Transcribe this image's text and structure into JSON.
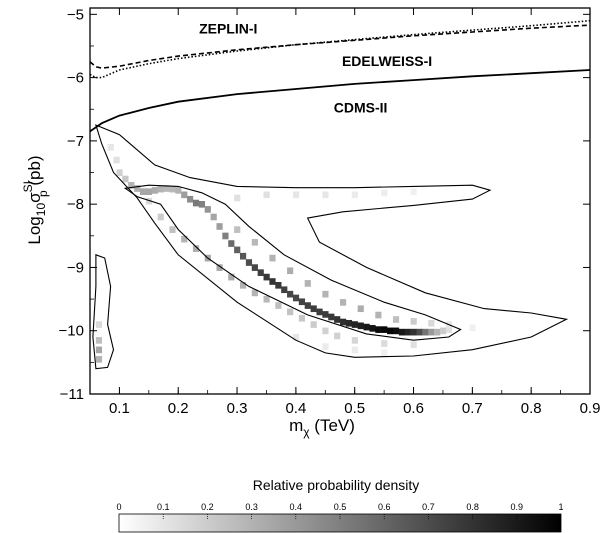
{
  "chart_data": {
    "type": "heatmap",
    "x_range": [
      0.05,
      0.9
    ],
    "y_range": [
      -11,
      -4.9
    ],
    "x_ticks": [
      "0.1",
      "0.2",
      "0.3",
      "0.4",
      "0.5",
      "0.6",
      "0.7",
      "0.8",
      "0.9"
    ],
    "y_ticks": [
      "-11",
      "-10",
      "-9",
      "-8",
      "-7",
      "-6",
      "-5"
    ],
    "xlabel": {
      "main": "m",
      "sub": "χ",
      "rest": " (TeV)"
    },
    "ylabel": {
      "main": "Log",
      "sub": "10",
      "sigma": "σ",
      "sup": "SI",
      "psub": "p",
      "rest": " (pb)"
    },
    "limit_curves": [
      {
        "name": "ZEPLIN-I",
        "style": "dotted",
        "points": [
          [
            0.05,
            -5.95
          ],
          [
            0.06,
            -6.0
          ],
          [
            0.07,
            -6.0
          ],
          [
            0.1,
            -5.88
          ],
          [
            0.15,
            -5.78
          ],
          [
            0.2,
            -5.7
          ],
          [
            0.3,
            -5.58
          ],
          [
            0.4,
            -5.48
          ],
          [
            0.5,
            -5.4
          ],
          [
            0.6,
            -5.32
          ],
          [
            0.7,
            -5.25
          ],
          [
            0.8,
            -5.18
          ],
          [
            0.9,
            -5.1
          ]
        ]
      },
      {
        "name": "EDELWEISS-I",
        "style": "dashed",
        "points": [
          [
            0.05,
            -5.75
          ],
          [
            0.06,
            -5.83
          ],
          [
            0.07,
            -5.85
          ],
          [
            0.1,
            -5.82
          ],
          [
            0.15,
            -5.73
          ],
          [
            0.2,
            -5.66
          ],
          [
            0.3,
            -5.56
          ],
          [
            0.4,
            -5.48
          ],
          [
            0.5,
            -5.41
          ],
          [
            0.6,
            -5.34
          ],
          [
            0.7,
            -5.28
          ],
          [
            0.8,
            -5.22
          ],
          [
            0.9,
            -5.17
          ]
        ]
      },
      {
        "name": "CDMS-II",
        "style": "solid",
        "points": [
          [
            0.05,
            -6.85
          ],
          [
            0.07,
            -6.72
          ],
          [
            0.1,
            -6.6
          ],
          [
            0.15,
            -6.48
          ],
          [
            0.2,
            -6.38
          ],
          [
            0.3,
            -6.26
          ],
          [
            0.4,
            -6.18
          ],
          [
            0.5,
            -6.1
          ],
          [
            0.6,
            -6.04
          ],
          [
            0.7,
            -5.98
          ],
          [
            0.8,
            -5.93
          ],
          [
            0.9,
            -5.88
          ]
        ]
      }
    ],
    "contours": [
      {
        "level": "outer",
        "points": [
          [
            0.06,
            -6.75
          ],
          [
            0.1,
            -6.9
          ],
          [
            0.16,
            -7.38
          ],
          [
            0.22,
            -7.58
          ],
          [
            0.3,
            -7.72
          ],
          [
            0.4,
            -7.74
          ],
          [
            0.5,
            -7.74
          ],
          [
            0.6,
            -7.72
          ],
          [
            0.7,
            -7.7
          ],
          [
            0.73,
            -7.78
          ],
          [
            0.7,
            -7.92
          ],
          [
            0.6,
            -8.02
          ],
          [
            0.48,
            -8.12
          ],
          [
            0.42,
            -8.22
          ],
          [
            0.44,
            -8.6
          ],
          [
            0.52,
            -9.0
          ],
          [
            0.62,
            -9.4
          ],
          [
            0.72,
            -9.65
          ],
          [
            0.8,
            -9.72
          ],
          [
            0.86,
            -9.82
          ],
          [
            0.8,
            -10.1
          ],
          [
            0.7,
            -10.3
          ],
          [
            0.6,
            -10.4
          ],
          [
            0.5,
            -10.42
          ],
          [
            0.45,
            -10.35
          ],
          [
            0.4,
            -10.15
          ],
          [
            0.3,
            -9.55
          ],
          [
            0.2,
            -8.8
          ],
          [
            0.16,
            -8.3
          ],
          [
            0.13,
            -7.9
          ],
          [
            0.09,
            -7.5
          ],
          [
            0.07,
            -7.05
          ],
          [
            0.06,
            -6.75
          ]
        ]
      },
      {
        "level": "inner",
        "points": [
          [
            0.11,
            -7.75
          ],
          [
            0.15,
            -7.7
          ],
          [
            0.2,
            -7.72
          ],
          [
            0.24,
            -7.82
          ],
          [
            0.28,
            -8.0
          ],
          [
            0.32,
            -8.35
          ],
          [
            0.38,
            -8.8
          ],
          [
            0.46,
            -9.2
          ],
          [
            0.55,
            -9.55
          ],
          [
            0.62,
            -9.75
          ],
          [
            0.68,
            -9.98
          ],
          [
            0.66,
            -10.1
          ],
          [
            0.6,
            -10.15
          ],
          [
            0.52,
            -10.05
          ],
          [
            0.42,
            -9.75
          ],
          [
            0.32,
            -9.3
          ],
          [
            0.25,
            -8.85
          ],
          [
            0.2,
            -8.4
          ],
          [
            0.17,
            -8.0
          ],
          [
            0.13,
            -7.88
          ],
          [
            0.11,
            -7.75
          ]
        ]
      },
      {
        "level": "left-island",
        "points": [
          [
            0.06,
            -8.8
          ],
          [
            0.075,
            -8.85
          ],
          [
            0.085,
            -9.3
          ],
          [
            0.08,
            -9.9
          ],
          [
            0.09,
            -10.3
          ],
          [
            0.08,
            -10.58
          ],
          [
            0.06,
            -10.6
          ],
          [
            0.055,
            -10.1
          ],
          [
            0.06,
            -9.3
          ],
          [
            0.06,
            -8.8
          ]
        ]
      }
    ],
    "density_cells": [
      [
        0.065,
        -10.3,
        0.35
      ],
      [
        0.065,
        -10.45,
        0.3
      ],
      [
        0.065,
        -10.15,
        0.25
      ],
      [
        0.065,
        -9.9,
        0.15
      ],
      [
        0.085,
        -7.1,
        0.1
      ],
      [
        0.095,
        -7.3,
        0.12
      ],
      [
        0.1,
        -7.5,
        0.18
      ],
      [
        0.11,
        -7.6,
        0.22
      ],
      [
        0.12,
        -7.7,
        0.3
      ],
      [
        0.13,
        -7.75,
        0.32
      ],
      [
        0.14,
        -7.8,
        0.35
      ],
      [
        0.15,
        -7.8,
        0.35
      ],
      [
        0.16,
        -7.78,
        0.33
      ],
      [
        0.17,
        -7.76,
        0.3
      ],
      [
        0.18,
        -7.75,
        0.28
      ],
      [
        0.19,
        -7.76,
        0.28
      ],
      [
        0.2,
        -7.78,
        0.3
      ],
      [
        0.21,
        -7.85,
        0.38
      ],
      [
        0.22,
        -7.92,
        0.45
      ],
      [
        0.23,
        -7.98,
        0.52
      ],
      [
        0.24,
        -8.0,
        0.5
      ],
      [
        0.25,
        -8.08,
        0.42
      ],
      [
        0.26,
        -8.2,
        0.35
      ],
      [
        0.27,
        -8.35,
        0.38
      ],
      [
        0.28,
        -8.5,
        0.5
      ],
      [
        0.29,
        -8.62,
        0.58
      ],
      [
        0.3,
        -8.72,
        0.62
      ],
      [
        0.31,
        -8.82,
        0.66
      ],
      [
        0.32,
        -8.92,
        0.7
      ],
      [
        0.33,
        -9.0,
        0.72
      ],
      [
        0.34,
        -9.08,
        0.75
      ],
      [
        0.35,
        -9.15,
        0.78
      ],
      [
        0.36,
        -9.22,
        0.8
      ],
      [
        0.37,
        -9.28,
        0.78
      ],
      [
        0.38,
        -9.35,
        0.75
      ],
      [
        0.39,
        -9.42,
        0.72
      ],
      [
        0.4,
        -9.48,
        0.72
      ],
      [
        0.41,
        -9.54,
        0.74
      ],
      [
        0.42,
        -9.6,
        0.75
      ],
      [
        0.43,
        -9.65,
        0.76
      ],
      [
        0.44,
        -9.7,
        0.76
      ],
      [
        0.45,
        -9.74,
        0.77
      ],
      [
        0.46,
        -9.78,
        0.78
      ],
      [
        0.47,
        -9.82,
        0.8
      ],
      [
        0.48,
        -9.86,
        0.82
      ],
      [
        0.49,
        -9.88,
        0.84
      ],
      [
        0.5,
        -9.9,
        0.86
      ],
      [
        0.51,
        -9.92,
        0.88
      ],
      [
        0.52,
        -9.94,
        0.9
      ],
      [
        0.53,
        -9.96,
        0.92
      ],
      [
        0.54,
        -9.98,
        0.95
      ],
      [
        0.55,
        -9.98,
        0.97
      ],
      [
        0.56,
        -10.0,
        0.98
      ],
      [
        0.57,
        -10.0,
        0.95
      ],
      [
        0.58,
        -10.02,
        0.9
      ],
      [
        0.59,
        -10.02,
        0.85
      ],
      [
        0.6,
        -10.02,
        0.8
      ],
      [
        0.61,
        -10.02,
        0.7
      ],
      [
        0.62,
        -10.02,
        0.55
      ],
      [
        0.63,
        -10.02,
        0.4
      ],
      [
        0.64,
        -10.02,
        0.3
      ],
      [
        0.65,
        -10.0,
        0.2
      ],
      [
        0.66,
        -9.98,
        0.12
      ],
      [
        0.15,
        -7.95,
        0.15
      ],
      [
        0.17,
        -8.2,
        0.2
      ],
      [
        0.19,
        -8.4,
        0.25
      ],
      [
        0.21,
        -8.55,
        0.3
      ],
      [
        0.23,
        -8.7,
        0.32
      ],
      [
        0.25,
        -8.85,
        0.35
      ],
      [
        0.27,
        -9.0,
        0.35
      ],
      [
        0.29,
        -9.15,
        0.33
      ],
      [
        0.31,
        -9.28,
        0.3
      ],
      [
        0.33,
        -9.4,
        0.3
      ],
      [
        0.35,
        -9.5,
        0.28
      ],
      [
        0.37,
        -9.6,
        0.25
      ],
      [
        0.39,
        -9.7,
        0.24
      ],
      [
        0.41,
        -9.8,
        0.22
      ],
      [
        0.43,
        -9.9,
        0.2
      ],
      [
        0.45,
        -10.0,
        0.18
      ],
      [
        0.47,
        -10.08,
        0.18
      ],
      [
        0.5,
        -10.15,
        0.16
      ],
      [
        0.55,
        -10.2,
        0.14
      ],
      [
        0.6,
        -10.22,
        0.12
      ],
      [
        0.3,
        -7.9,
        0.12
      ],
      [
        0.35,
        -7.85,
        0.12
      ],
      [
        0.4,
        -7.85,
        0.1
      ],
      [
        0.45,
        -7.85,
        0.1
      ],
      [
        0.5,
        -7.85,
        0.08
      ],
      [
        0.55,
        -7.82,
        0.07
      ],
      [
        0.6,
        -7.8,
        0.06
      ],
      [
        0.3,
        -8.4,
        0.25
      ],
      [
        0.33,
        -8.6,
        0.28
      ],
      [
        0.36,
        -8.85,
        0.3
      ],
      [
        0.39,
        -9.05,
        0.32
      ],
      [
        0.42,
        -9.25,
        0.3
      ],
      [
        0.45,
        -9.42,
        0.3
      ],
      [
        0.48,
        -9.55,
        0.3
      ],
      [
        0.51,
        -9.65,
        0.32
      ],
      [
        0.54,
        -9.75,
        0.3
      ],
      [
        0.57,
        -9.82,
        0.25
      ],
      [
        0.6,
        -9.85,
        0.2
      ],
      [
        0.63,
        -9.88,
        0.15
      ],
      [
        0.66,
        -9.9,
        0.1
      ],
      [
        0.7,
        -9.95,
        0.06
      ],
      [
        0.5,
        -10.3,
        0.08
      ],
      [
        0.55,
        -10.35,
        0.06
      ],
      [
        0.45,
        -10.25,
        0.08
      ],
      [
        0.4,
        -10.1,
        0.1
      ]
    ],
    "colorbar": {
      "title": "Relative probability density",
      "ticks": [
        "0",
        "0.1",
        "0.2",
        "0.3",
        "0.4",
        "0.5",
        "0.6",
        "0.7",
        "0.8",
        "0.9",
        "1"
      ]
    }
  }
}
